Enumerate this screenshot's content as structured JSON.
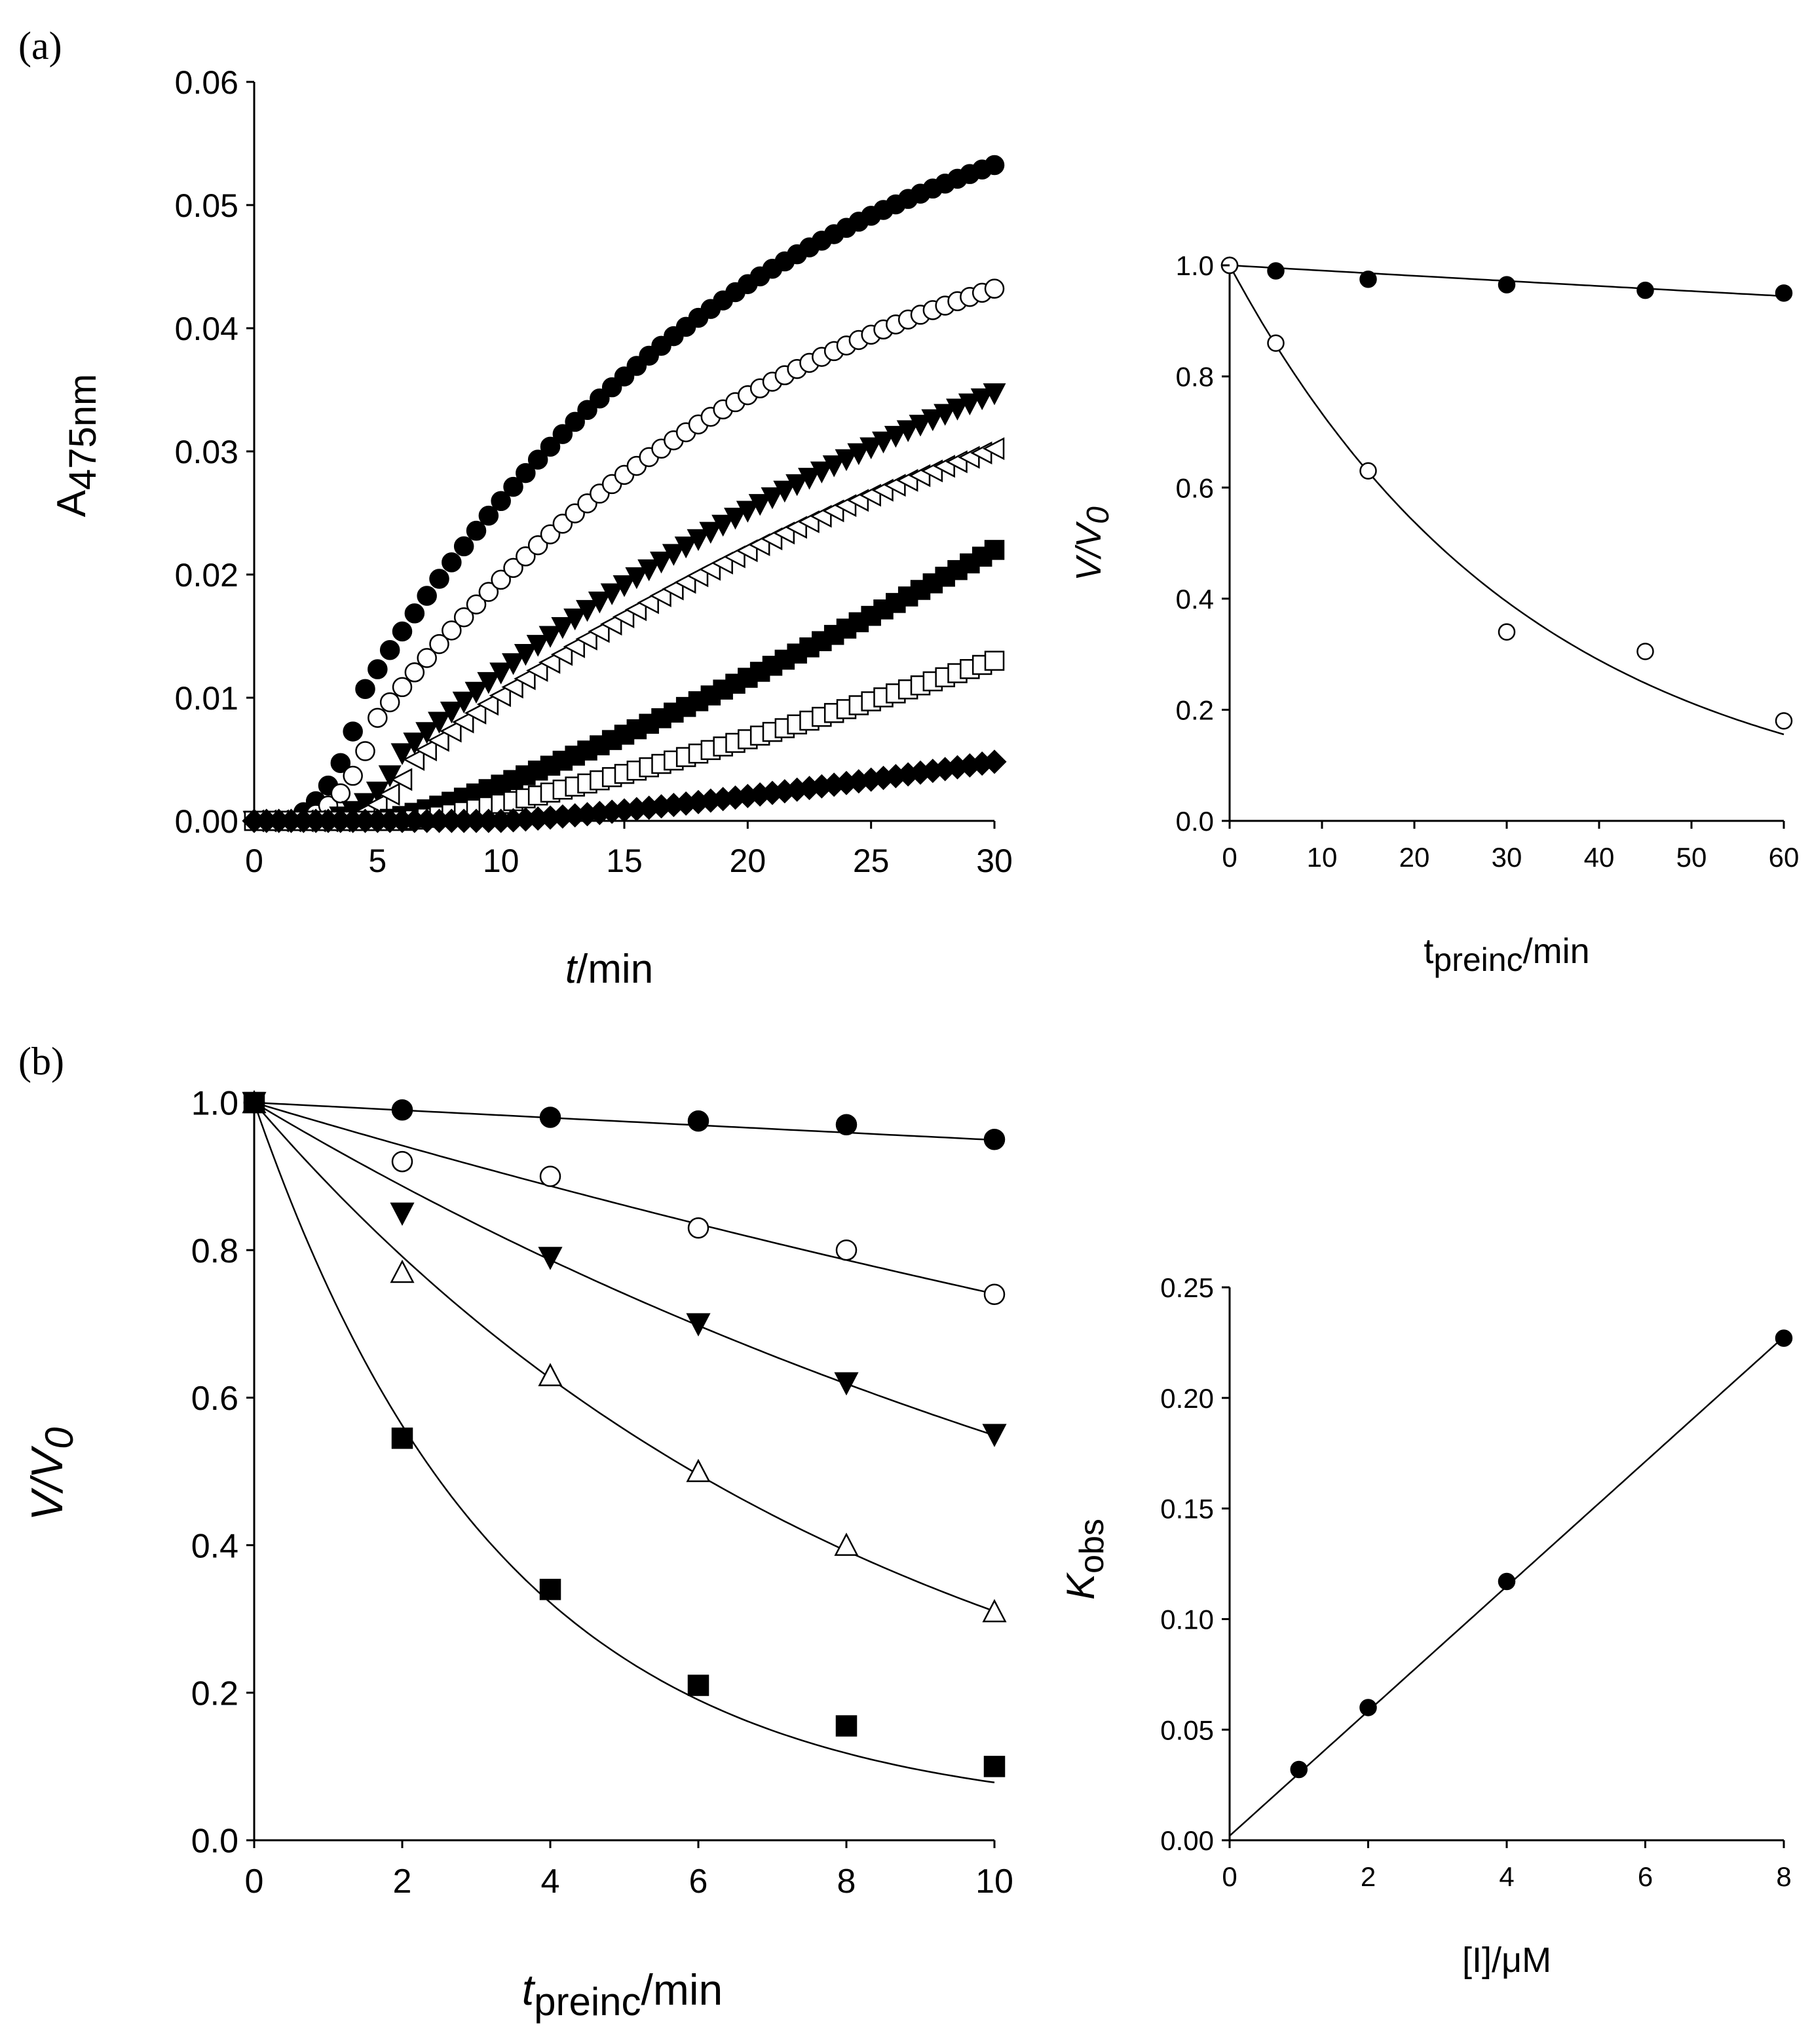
{
  "panel_labels": {
    "a": "(a)",
    "b": "(b)"
  },
  "chart_data": [
    {
      "id": "chart-a-left",
      "type": "scatter",
      "title": "",
      "xlabel_italic": "t",
      "xlabel_rest": "/min",
      "ylabel_main": "A",
      "ylabel_sub": "475nm",
      "xlim": [
        0,
        30
      ],
      "ylim": [
        0,
        0.06
      ],
      "xticks": [
        "0",
        "5",
        "10",
        "15",
        "20",
        "25",
        "30"
      ],
      "xtick_values": [
        0,
        5,
        10,
        15,
        20,
        25,
        30
      ],
      "yticks": [
        "0.00",
        "0.01",
        "0.02",
        "0.03",
        "0.04",
        "0.05",
        "0.06"
      ],
      "ytick_values": [
        0,
        0.01,
        0.02,
        0.03,
        0.04,
        0.05,
        0.06
      ],
      "series": [
        {
          "name": "filled-circle",
          "marker": "filled-circle",
          "lag": 1.5,
          "kind": "sat",
          "amp": 0.065,
          "rate": 0.06
        },
        {
          "name": "open-circle",
          "marker": "open-circle",
          "lag": 2.0,
          "kind": "sat",
          "amp": 0.055,
          "rate": 0.055
        },
        {
          "name": "filled-triangle-down",
          "marker": "filled-triangle-down",
          "lag": 3.0,
          "kind": "sat",
          "amp": 0.06,
          "rate": 0.032
        },
        {
          "name": "open-triangle",
          "marker": "open-triangle-left",
          "lag": 3.5,
          "kind": "sat",
          "amp": 0.05,
          "rate": 0.035
        },
        {
          "name": "filled-square",
          "marker": "filled-square",
          "lag": 5.0,
          "kind": "lin",
          "end": 0.022
        },
        {
          "name": "open-square",
          "marker": "open-square",
          "lag": 6.0,
          "kind": "lin",
          "end": 0.013
        },
        {
          "name": "filled-diamond",
          "marker": "filled-diamond",
          "lag": 10.0,
          "kind": "lin",
          "end": 0.0048
        }
      ]
    },
    {
      "id": "chart-a-right",
      "type": "scatter",
      "title": "",
      "xlabel_main": "t",
      "xlabel_sub": "preinc",
      "xlabel_rest": "/min",
      "ylabel": "V/V",
      "ylabel_sub": "0",
      "xlim": [
        0,
        60
      ],
      "ylim": [
        0,
        1.0
      ],
      "xticks": [
        "0",
        "10",
        "20",
        "30",
        "40",
        "50",
        "60"
      ],
      "xtick_values": [
        0,
        10,
        20,
        30,
        40,
        50,
        60
      ],
      "yticks": [
        "0.0",
        "0.2",
        "0.4",
        "0.6",
        "0.8",
        "1.0"
      ],
      "ytick_values": [
        0,
        0.2,
        0.4,
        0.6,
        0.8,
        1.0
      ],
      "series": [
        {
          "name": "filled-circle",
          "marker": "filled-circle",
          "x": [
            0,
            5,
            15,
            30,
            45,
            60
          ],
          "y": [
            1.0,
            0.99,
            0.975,
            0.965,
            0.955,
            0.95
          ],
          "fit": {
            "type": "exp",
            "a": 1.0,
            "k": 0.00095
          }
        },
        {
          "name": "open-circle",
          "marker": "open-circle",
          "x": [
            0,
            5,
            15,
            30,
            45,
            60
          ],
          "y": [
            1.0,
            0.86,
            0.63,
            0.34,
            0.305,
            0.18
          ],
          "fit": {
            "type": "exp",
            "a": 1.0,
            "k": 0.031
          }
        }
      ]
    },
    {
      "id": "chart-b-left",
      "type": "scatter",
      "title": "",
      "xlabel_main": "t",
      "xlabel_sub": "preinc",
      "xlabel_rest": "/min",
      "ylabel": "V/V",
      "ylabel_sub": "0",
      "xlim": [
        0,
        10
      ],
      "ylim": [
        0,
        1.0
      ],
      "xticks": [
        "0",
        "2",
        "4",
        "6",
        "8",
        "10"
      ],
      "xtick_values": [
        0,
        2,
        4,
        6,
        8,
        10
      ],
      "yticks": [
        "0.0",
        "0.2",
        "0.4",
        "0.6",
        "0.8",
        "1.0"
      ],
      "ytick_values": [
        0,
        0.2,
        0.4,
        0.6,
        0.8,
        1.0
      ],
      "series": [
        {
          "name": "filled-circle",
          "marker": "filled-circle",
          "x": [
            0,
            2,
            4,
            6,
            8,
            10
          ],
          "y": [
            1.0,
            0.99,
            0.98,
            0.975,
            0.97,
            0.95
          ],
          "fit": {
            "type": "exp",
            "a": 1.0,
            "k": 0.0052
          }
        },
        {
          "name": "open-circle",
          "marker": "open-circle",
          "x": [
            0,
            2,
            4,
            6,
            8,
            10
          ],
          "y": [
            1.0,
            0.92,
            0.9,
            0.83,
            0.8,
            0.74
          ],
          "fit": {
            "type": "exp",
            "a": 1.0,
            "k": 0.03
          }
        },
        {
          "name": "filled-triangle-down",
          "marker": "filled-triangle-down",
          "x": [
            0,
            2,
            4,
            6,
            8,
            10
          ],
          "y": [
            1.0,
            0.85,
            0.79,
            0.7,
            0.62,
            0.55
          ],
          "fit": {
            "type": "exp",
            "a": 1.0,
            "k": 0.06
          }
        },
        {
          "name": "open-triangle",
          "marker": "open-triangle-up",
          "x": [
            0,
            2,
            4,
            6,
            8,
            10
          ],
          "y": [
            1.0,
            0.77,
            0.63,
            0.5,
            0.4,
            0.31
          ],
          "fit": {
            "type": "exp",
            "a": 1.0,
            "k": 0.117
          }
        },
        {
          "name": "filled-square",
          "marker": "filled-square",
          "x": [
            0,
            2,
            4,
            6,
            8,
            10
          ],
          "y": [
            1.0,
            0.545,
            0.34,
            0.21,
            0.155,
            0.1
          ],
          "fit": {
            "type": "exp_offset",
            "a": 0.97,
            "k": 0.3,
            "c": 0.03
          }
        }
      ]
    },
    {
      "id": "chart-b-right",
      "type": "scatter",
      "title": "",
      "xlabel": "[I]/μM",
      "ylabel_main": "K",
      "ylabel_sub": "obs",
      "xlim": [
        0,
        8
      ],
      "ylim": [
        0,
        0.25
      ],
      "xticks": [
        "0",
        "2",
        "4",
        "6",
        "8"
      ],
      "xtick_values": [
        0,
        2,
        4,
        6,
        8
      ],
      "yticks": [
        "0.00",
        "0.05",
        "0.10",
        "0.15",
        "0.20",
        "0.25"
      ],
      "ytick_values": [
        0,
        0.05,
        0.1,
        0.15,
        0.2,
        0.25
      ],
      "series": [
        {
          "name": "filled-circle",
          "marker": "filled-circle",
          "x": [
            1,
            2,
            4,
            8
          ],
          "y": [
            0.032,
            0.06,
            0.117,
            0.227
          ],
          "fit": {
            "type": "linear",
            "slope": 0.0282,
            "intercept": 0.002
          }
        }
      ]
    }
  ]
}
